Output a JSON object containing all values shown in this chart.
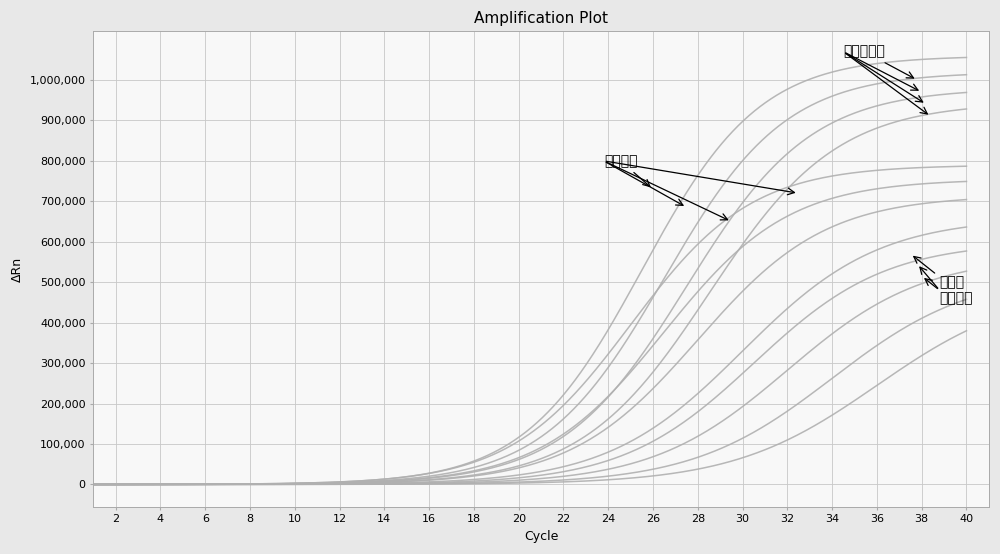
{
  "title": "Amplification Plot",
  "xlabel": "Cycle",
  "ylabel": "ΔRn",
  "xlim": [
    1,
    41
  ],
  "ylim": [
    -55000,
    1120000
  ],
  "xticks": [
    2,
    4,
    6,
    8,
    10,
    12,
    14,
    16,
    18,
    20,
    22,
    24,
    26,
    28,
    30,
    32,
    34,
    36,
    38,
    40
  ],
  "yticks": [
    0,
    100000,
    200000,
    300000,
    400000,
    500000,
    600000,
    700000,
    800000,
    900000,
    1000000
  ],
  "ytick_labels": [
    "0",
    "100,000",
    "200,000",
    "300,000",
    "400,000",
    "500,000",
    "600,000",
    "700,000",
    "800,000",
    "900,000",
    "1,000,000"
  ],
  "background_color": "#e8e8e8",
  "plot_bg_color": "#f8f8f8",
  "grid_color": "#c8c8c8",
  "curve_color": "#b0b0b0",
  "title_fontsize": 11,
  "axis_label_fontsize": 9,
  "tick_fontsize": 8,
  "annotation_fontsize": 10,
  "group1_plateaus": [
    1060000,
    1020000,
    980000,
    945000
  ],
  "group1_midpoints": [
    25.5,
    26.5,
    27.5,
    28.5
  ],
  "group1_slopes": [
    0.38,
    0.37,
    0.36,
    0.35
  ],
  "group2_plateaus": [
    790000,
    755000,
    715000,
    660000
  ],
  "group2_midpoints": [
    25.0,
    26.5,
    28.0,
    30.0
  ],
  "group2_slopes": [
    0.37,
    0.36,
    0.35,
    0.33
  ],
  "group3_plateaus": [
    600000,
    565000,
    525000,
    490000
  ],
  "group3_midpoints": [
    30.5,
    32.0,
    34.0,
    36.0
  ],
  "group3_slopes": [
    0.34,
    0.33,
    0.32,
    0.31
  ],
  "label1": "嗜肺军团菌",
  "label2": "大肠杆菌",
  "label3_line1": "溶血性",
  "label3_line2": "葡萄球菌"
}
